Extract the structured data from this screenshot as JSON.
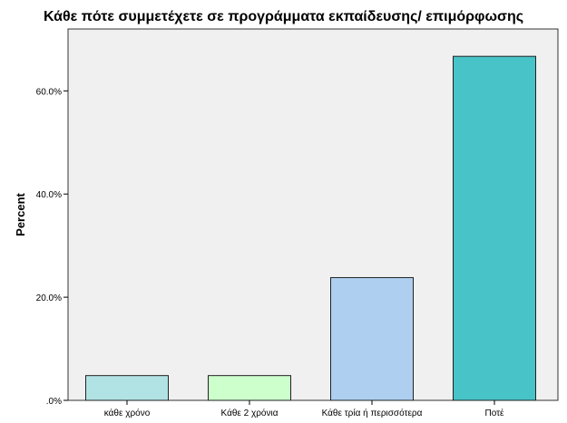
{
  "chart_data": {
    "type": "bar",
    "title": "Κάθε πότε συμμετέχετε σε προγράμματα εκπαίδευσης/ επιμόρφωσης",
    "xlabel": "",
    "ylabel": "Percent",
    "categories": [
      "κάθε χρόνο",
      "Κάθε 2 χρόνια",
      "Κάθε τρία ή περισσότερα",
      "Ποτέ"
    ],
    "values": [
      4.8,
      4.8,
      23.8,
      66.7
    ],
    "bar_colors": [
      "#b2e3e4",
      "#ccffcc",
      "#aecff0",
      "#48c3c8"
    ],
    "ylim": [
      0,
      72
    ],
    "y_ticks": [
      0,
      20,
      40,
      60
    ],
    "y_tick_labels": [
      ".0%",
      "20.0%",
      "40.0%",
      "60.0%"
    ],
    "plot_background": "#f0f0f0",
    "grid": false,
    "legend": "none"
  }
}
